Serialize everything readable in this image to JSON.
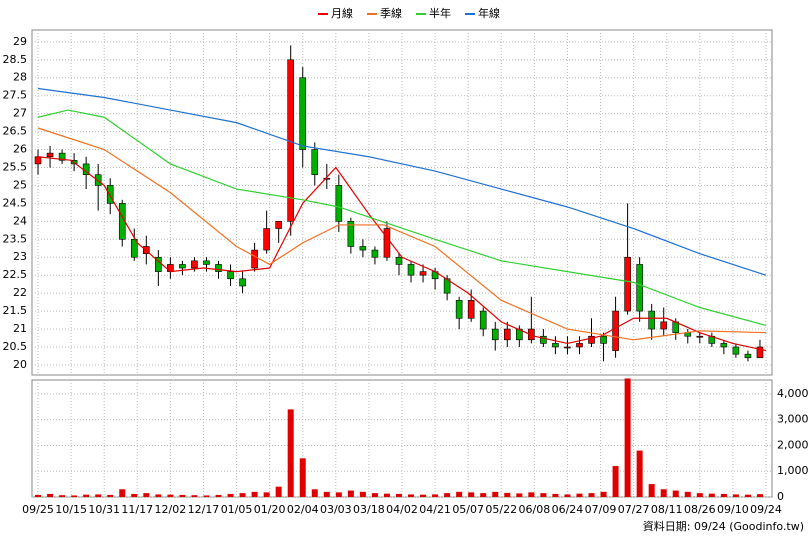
{
  "chart_data": {
    "type": "candlestick",
    "x": [
      0,
      4,
      8,
      12,
      16,
      20,
      24,
      28,
      32,
      36,
      40,
      44,
      48,
      52,
      56,
      60,
      64,
      68,
      72,
      76,
      80,
      84,
      88,
      92,
      96,
      100,
      104,
      108,
      112,
      116,
      120,
      124,
      128,
      132,
      136,
      140,
      144,
      148,
      152,
      156,
      160,
      164,
      168,
      172,
      176,
      180,
      184,
      188,
      192,
      196,
      200,
      204,
      208,
      212,
      216,
      220,
      224,
      228,
      232,
      236,
      240
    ],
    "open": [
      25.6,
      25.8,
      25.9,
      25.7,
      25.6,
      25.3,
      25.0,
      24.5,
      23.5,
      23.1,
      23.0,
      22.6,
      22.8,
      22.7,
      22.9,
      22.8,
      22.6,
      22.4,
      22.7,
      23.2,
      23.8,
      24.0,
      28.0,
      26.0,
      25.2,
      25.0,
      24.0,
      23.3,
      23.2,
      23.0,
      23.0,
      22.8,
      22.5,
      22.6,
      22.4,
      21.8,
      21.3,
      21.5,
      21.0,
      20.7,
      21.0,
      20.7,
      20.8,
      20.6,
      20.5,
      20.5,
      20.6,
      20.8,
      20.4,
      21.5,
      22.8,
      21.5,
      21.0,
      21.2,
      20.9,
      20.8,
      20.8,
      20.6,
      20.5,
      20.3,
      20.2
    ],
    "high": [
      26.0,
      26.1,
      26.0,
      25.9,
      25.8,
      25.6,
      25.2,
      24.6,
      23.8,
      23.6,
      23.2,
      23.0,
      22.9,
      23.0,
      23.0,
      22.9,
      22.8,
      22.6,
      23.4,
      24.3,
      24.0,
      28.9,
      28.3,
      26.2,
      25.6,
      25.3,
      24.1,
      23.5,
      23.3,
      24.0,
      23.1,
      22.9,
      22.8,
      22.7,
      22.5,
      21.9,
      22.1,
      21.6,
      21.2,
      21.2,
      21.1,
      21.9,
      21.0,
      20.8,
      20.8,
      20.8,
      21.3,
      20.9,
      21.9,
      24.5,
      23.0,
      21.7,
      21.6,
      21.3,
      21.0,
      20.9,
      20.9,
      20.7,
      20.6,
      20.4,
      20.7
    ],
    "low": [
      25.3,
      25.5,
      25.6,
      25.4,
      24.9,
      24.3,
      24.2,
      23.3,
      22.9,
      22.8,
      22.2,
      22.4,
      22.5,
      22.6,
      22.6,
      22.4,
      22.2,
      22.0,
      22.6,
      23.1,
      23.4,
      23.6,
      25.5,
      25.0,
      24.9,
      23.7,
      23.1,
      23.0,
      22.8,
      22.9,
      22.5,
      22.3,
      22.3,
      22.1,
      21.8,
      21.0,
      21.2,
      20.8,
      20.4,
      20.5,
      20.5,
      20.6,
      20.5,
      20.3,
      20.3,
      20.3,
      20.5,
      20.1,
      20.2,
      21.4,
      21.2,
      20.7,
      20.8,
      20.7,
      20.6,
      20.6,
      20.5,
      20.3,
      20.2,
      20.1,
      20.2
    ],
    "close": [
      25.8,
      25.9,
      25.7,
      25.6,
      25.3,
      25.0,
      24.5,
      23.5,
      23.0,
      23.3,
      22.6,
      22.8,
      22.7,
      22.9,
      22.8,
      22.6,
      22.4,
      22.2,
      23.2,
      23.8,
      24.0,
      28.5,
      26.0,
      25.3,
      25.2,
      24.0,
      23.3,
      23.2,
      23.0,
      23.8,
      22.8,
      22.5,
      22.6,
      22.4,
      22.0,
      21.3,
      21.8,
      21.0,
      20.7,
      21.0,
      20.7,
      21.0,
      20.6,
      20.5,
      20.5,
      20.6,
      20.8,
      20.6,
      21.5,
      23.0,
      21.5,
      21.0,
      21.2,
      20.9,
      20.8,
      20.8,
      20.6,
      20.5,
      20.3,
      20.2,
      20.5
    ],
    "volume": [
      80,
      120,
      70,
      60,
      90,
      100,
      80,
      300,
      120,
      150,
      100,
      90,
      80,
      70,
      60,
      80,
      120,
      150,
      200,
      180,
      400,
      3400,
      1500,
      300,
      200,
      180,
      250,
      200,
      150,
      130,
      120,
      100,
      90,
      100,
      150,
      200,
      180,
      150,
      200,
      160,
      140,
      180,
      150,
      120,
      100,
      130,
      150,
      200,
      1200,
      4600,
      1800,
      500,
      300,
      250,
      200,
      150,
      130,
      120,
      100,
      90,
      110
    ],
    "up_color": "#ff0000",
    "down_color": "#00b000",
    "volume_color": "#e00000",
    "lines": [
      {
        "name": "月線",
        "color": "#e00000",
        "x": [
          0,
          11,
          22,
          33,
          44,
          55,
          66,
          77,
          88,
          99,
          110,
          121,
          132,
          143,
          154,
          165,
          176,
          187,
          198,
          209,
          220,
          231,
          242
        ],
        "values": [
          25.8,
          25.7,
          25.0,
          23.4,
          22.6,
          22.7,
          22.6,
          22.7,
          24.5,
          25.5,
          24.2,
          23.0,
          22.6,
          22.0,
          21.2,
          20.8,
          20.6,
          20.8,
          21.3,
          21.3,
          20.9,
          20.6,
          20.4
        ]
      },
      {
        "name": "季線",
        "color": "#f07020",
        "x": [
          0,
          22,
          44,
          66,
          77,
          88,
          100,
          115,
          132,
          154,
          176,
          198,
          220,
          242
        ],
        "values": [
          26.6,
          26.0,
          24.8,
          23.3,
          22.8,
          23.4,
          23.9,
          23.9,
          23.3,
          21.8,
          21.0,
          20.7,
          20.95,
          20.9
        ]
      },
      {
        "name": "半年",
        "color": "#30d030",
        "x": [
          0,
          10,
          22,
          44,
          66,
          88,
          100,
          132,
          154,
          176,
          198,
          220,
          242
        ],
        "values": [
          26.9,
          27.1,
          26.9,
          25.6,
          24.9,
          24.6,
          24.4,
          23.5,
          22.9,
          22.6,
          22.3,
          21.6,
          21.1
        ]
      },
      {
        "name": "年線",
        "color": "#2070d0",
        "x": [
          0,
          22,
          44,
          66,
          88,
          110,
          132,
          154,
          176,
          198,
          220,
          242
        ],
        "values": [
          27.7,
          27.45,
          27.1,
          26.75,
          26.1,
          25.8,
          25.4,
          24.9,
          24.4,
          23.8,
          23.1,
          22.5
        ]
      }
    ],
    "xlim": [
      -2,
      244
    ],
    "xticks": [
      {
        "value": 0,
        "label": "09/25"
      },
      {
        "value": 11,
        "label": "10/15"
      },
      {
        "value": 22,
        "label": "10/31"
      },
      {
        "value": 33,
        "label": "11/17"
      },
      {
        "value": 44,
        "label": "12/02"
      },
      {
        "value": 55,
        "label": "12/17"
      },
      {
        "value": 66,
        "label": "01/05"
      },
      {
        "value": 77,
        "label": "01/20"
      },
      {
        "value": 88,
        "label": "02/04"
      },
      {
        "value": 99,
        "label": "03/03"
      },
      {
        "value": 110,
        "label": "03/18"
      },
      {
        "value": 121,
        "label": "04/02"
      },
      {
        "value": 132,
        "label": "04/21"
      },
      {
        "value": 143,
        "label": "05/07"
      },
      {
        "value": 154,
        "label": "05/22"
      },
      {
        "value": 165,
        "label": "06/08"
      },
      {
        "value": 176,
        "label": "06/24"
      },
      {
        "value": 187,
        "label": "07/09"
      },
      {
        "value": 198,
        "label": "07/27"
      },
      {
        "value": 209,
        "label": "08/11"
      },
      {
        "value": 220,
        "label": "08/26"
      },
      {
        "value": 231,
        "label": "09/10"
      },
      {
        "value": 242,
        "label": "09/24"
      }
    ],
    "ylim": [
      19.72,
      29.33
    ],
    "yticks": [
      20,
      20.5,
      21,
      21.5,
      22,
      22.5,
      23,
      23.5,
      24,
      24.5,
      25,
      25.5,
      26,
      26.5,
      27,
      27.5,
      28,
      28.5,
      29
    ],
    "y2lim": [
      0,
      4540
    ],
    "y2ticks": [
      0,
      {
        "value": 1000,
        "label": "1,000"
      },
      {
        "value": 2000,
        "label": "2,000"
      },
      {
        "value": 3000,
        "label": "3,000"
      },
      {
        "value": 4000,
        "label": "4,000"
      }
    ],
    "grid": true,
    "footer": "資料日期: 09/24 (Goodinfo.tw)"
  }
}
